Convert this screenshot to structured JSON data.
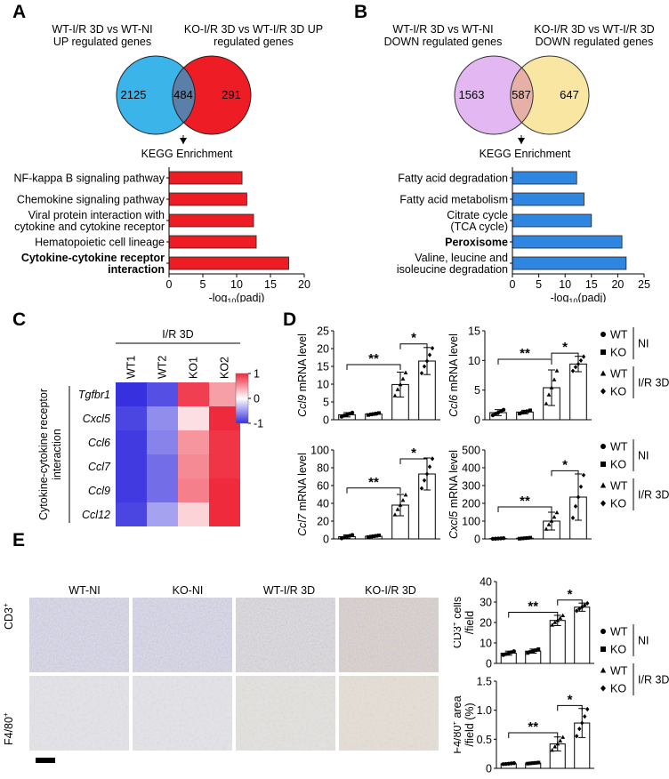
{
  "panels": {
    "A": {
      "letter": "A",
      "venn": {
        "left_title": "WT-I/R 3D vs WT-NI UP regulated genes",
        "right_title": "KO-I/R 3D vs WT-I/R 3D UP regulated genes",
        "left_only": "2125",
        "overlap": "484",
        "right_only": "291",
        "left_color": "#3bb4ea",
        "right_color": "#ee1c24",
        "overlap_color": "#5a7fa8"
      },
      "kegg_title": "KEGG Enrichment",
      "bar_color": "#ee1c24",
      "chart_data": {
        "type": "bar",
        "orientation": "horizontal",
        "categories": [
          "NF-kappa B signaling pathway",
          "Chemokine signaling pathway",
          "Viral protein interaction with cytokine and cytokine receptor",
          "Hematopoietic cell lineage",
          "Cytokine-cytokine receptor interaction"
        ],
        "category_lines": [
          [
            "NF-kappa B signaling pathway"
          ],
          [
            "Chemokine signaling pathway"
          ],
          [
            "Viral protein interaction with",
            "cytokine and cytokine receptor"
          ],
          [
            "Hematopoietic cell lineage"
          ],
          [
            "Cytokine-cytokine receptor",
            "interaction"
          ]
        ],
        "bold": [
          false,
          false,
          false,
          false,
          true
        ],
        "values": [
          10.8,
          11.5,
          12.5,
          12.9,
          17.7
        ],
        "xlim": [
          0,
          20
        ],
        "xticks": [
          0,
          5,
          10,
          15,
          20
        ],
        "xlabel": "-log10(padj)"
      }
    },
    "B": {
      "letter": "B",
      "venn": {
        "left_title": "WT-I/R 3D vs WT-NI DOWN regulated genes",
        "right_title": "KO-I/R 3D vs WT-I/R 3D DOWN regulated genes",
        "left_only": "1563",
        "overlap": "587",
        "right_only": "647",
        "left_color": "#e3b8f2",
        "right_color": "#f8e6a2",
        "overlap_color": "#e6b0a6"
      },
      "kegg_title": "KEGG Enrichment",
      "bar_color": "#2f86e0",
      "chart_data": {
        "type": "bar",
        "orientation": "horizontal",
        "categories": [
          "Fatty acid degradation",
          "Fatty acid metabolism",
          "Citrate cycle (TCA cycle)",
          "Peroxisome",
          "Valine, leucine and isoleucine degradation"
        ],
        "category_lines": [
          [
            "Fatty acid degradation"
          ],
          [
            "Fatty acid metabolism"
          ],
          [
            "Citrate cycle",
            "(TCA cycle)"
          ],
          [
            "Peroxisome"
          ],
          [
            "Valine, leucine and",
            "isoleucine degradation"
          ]
        ],
        "bold": [
          false,
          false,
          false,
          true,
          false
        ],
        "values": [
          12.2,
          13.6,
          15.0,
          20.8,
          21.6
        ],
        "xlim": [
          0,
          25
        ],
        "xticks": [
          0,
          5,
          10,
          15,
          20,
          25
        ],
        "xlabel": "-log10(padj)"
      }
    },
    "C": {
      "letter": "C",
      "group_label": "I/R 3D",
      "side_label": "Cytokine-cytokine receptor interaction",
      "chart_data": {
        "type": "heatmap",
        "columns": [
          "WT1",
          "WT2",
          "KO1",
          "KO2"
        ],
        "rows": [
          "Tgfbr1",
          "Cxcl5",
          "Ccl6",
          "Ccl7",
          "Ccl9",
          "Ccl12"
        ],
        "values": [
          [
            -1.0,
            -0.85,
            0.9,
            0.45
          ],
          [
            -0.9,
            -0.55,
            0.15,
            1.0
          ],
          [
            -0.95,
            -0.6,
            0.5,
            0.95
          ],
          [
            -0.95,
            -0.7,
            0.55,
            0.95
          ],
          [
            -0.95,
            -0.7,
            0.6,
            1.0
          ],
          [
            -0.9,
            -0.45,
            0.2,
            1.0
          ]
        ],
        "color_range": [
          -1,
          1
        ],
        "colorbar_ticks": [
          "1",
          "0",
          "-1"
        ]
      }
    },
    "D": {
      "letter": "D",
      "legend_top": {
        "items": [
          "WT",
          "KO",
          "WT",
          "KO"
        ],
        "groups": [
          "NI",
          "I/R 3D"
        ]
      },
      "legend_bottom": {
        "items": [
          "WT",
          "KO",
          "WT",
          "KO"
        ],
        "groups": [
          "NI",
          "I/R 3D"
        ]
      },
      "chart_data": [
        {
          "type": "bar",
          "title": "",
          "ylabel_gene": "Ccl9",
          "ylabel_rest": " mRNA level",
          "categories": [
            "WT-NI",
            "KO-NI",
            "WT-I/R 3D",
            "KO-I/R 3D"
          ],
          "values": [
            1.4,
            1.6,
            9.9,
            16.5
          ],
          "errors": [
            0.6,
            0.3,
            3.5,
            3.8
          ],
          "ylim": [
            0,
            25
          ],
          "yticks": [
            0,
            5,
            10,
            15,
            20,
            25
          ],
          "significance": [
            "**",
            "*"
          ]
        },
        {
          "type": "bar",
          "title": "",
          "ylabel_gene": "Ccl6",
          "ylabel_rest": " mRNA level",
          "categories": [
            "WT-NI",
            "KO-NI",
            "WT-I/R 3D",
            "KO-I/R 3D"
          ],
          "values": [
            1.2,
            1.3,
            5.4,
            9.4
          ],
          "errors": [
            0.5,
            0.3,
            3.0,
            1.3
          ],
          "ylim": [
            0,
            15
          ],
          "yticks": [
            0,
            5,
            10,
            15
          ],
          "significance": [
            "**",
            "*"
          ]
        },
        {
          "type": "bar",
          "title": "",
          "ylabel_gene": "Ccl7",
          "ylabel_rest": " mRNA level",
          "categories": [
            "WT-NI",
            "KO-NI",
            "WT-I/R 3D",
            "KO-I/R 3D"
          ],
          "values": [
            2.5,
            3.0,
            38,
            73
          ],
          "errors": [
            2.0,
            1.0,
            12,
            18
          ],
          "ylim": [
            0,
            100
          ],
          "yticks": [
            0,
            20,
            40,
            60,
            80,
            100
          ],
          "significance": [
            "**",
            "*"
          ]
        },
        {
          "type": "bar",
          "title": "",
          "ylabel_gene": "Cxcl5",
          "ylabel_rest": " mRNA level",
          "categories": [
            "WT-NI",
            "KO-NI",
            "WT-I/R 3D",
            "KO-I/R 3D"
          ],
          "values": [
            2,
            4,
            100,
            235
          ],
          "errors": [
            2,
            3,
            50,
            130
          ],
          "ylim": [
            0,
            500
          ],
          "yticks": [
            0,
            100,
            200,
            300,
            400,
            500
          ],
          "significance": [
            "**",
            "*"
          ]
        }
      ]
    },
    "E": {
      "letter": "E",
      "column_titles": [
        "WT-NI",
        "KO-NI",
        "WT-I/R 3D",
        "KO-I/R 3D"
      ],
      "row_titles": [
        "CD3",
        "F4/80"
      ],
      "row_sup": "+",
      "legend_top": {
        "items": [
          "WT",
          "KO",
          "WT",
          "KO"
        ],
        "groups": [
          "NI",
          "I/R 3D"
        ]
      },
      "chart_data": [
        {
          "type": "bar",
          "ylabel_line1": "CD3 cells",
          "ylabel_sup": "+",
          "ylabel_line2": "/field",
          "categories": [
            "WT-NI",
            "KO-NI",
            "WT-I/R 3D",
            "KO-I/R 3D"
          ],
          "values": [
            5.0,
            6.0,
            21.0,
            27.5
          ],
          "errors": [
            1.0,
            1.0,
            2.5,
            2.0
          ],
          "ylim": [
            0,
            40
          ],
          "yticks": [
            0,
            10,
            20,
            30,
            40
          ],
          "significance": [
            "**",
            "*"
          ]
        },
        {
          "type": "bar",
          "ylabel_line1": "F4/80 area",
          "ylabel_sup": "+",
          "ylabel_line2": "/field (%)",
          "categories": [
            "WT-NI",
            "KO-NI",
            "WT-I/R 3D",
            "KO-I/R 3D"
          ],
          "values": [
            0.08,
            0.09,
            0.42,
            0.78
          ],
          "errors": [
            0.01,
            0.01,
            0.12,
            0.25
          ],
          "ylim": [
            0,
            1.5
          ],
          "yticks": [
            "0",
            "0.5",
            "1.0",
            "1.5"
          ],
          "significance": [
            "**",
            "*"
          ]
        }
      ]
    }
  }
}
